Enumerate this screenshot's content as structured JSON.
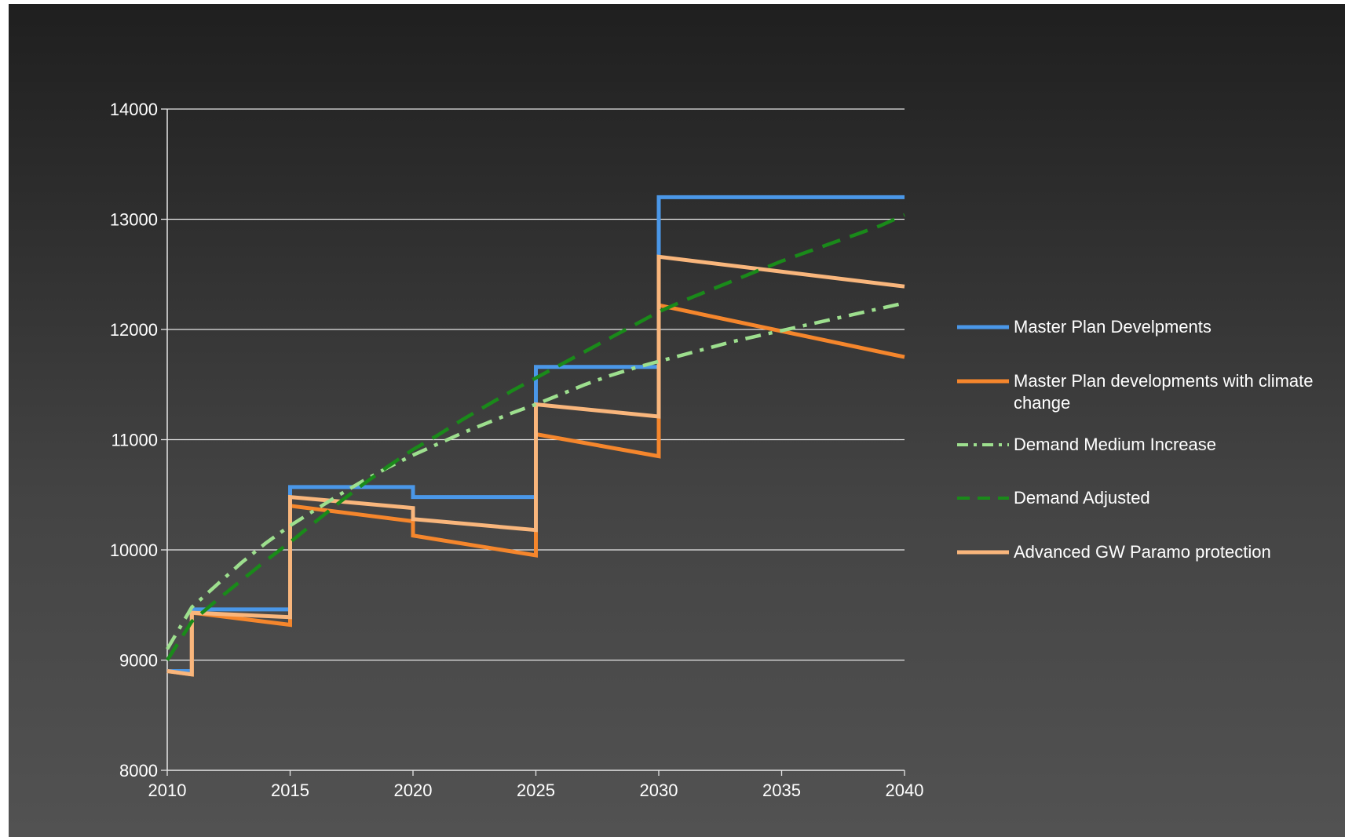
{
  "chart_data": {
    "type": "line",
    "title": "",
    "xlabel": "",
    "ylabel": "",
    "xlim": [
      2010,
      2040
    ],
    "ylim": [
      8000,
      14000
    ],
    "x_ticks": [
      "2010",
      "2015",
      "2020",
      "2025",
      "2030",
      "2035",
      "2040"
    ],
    "y_ticks": [
      "8000",
      "9000",
      "10000",
      "11000",
      "12000",
      "13000",
      "14000"
    ],
    "grid": true,
    "legend_position": "right",
    "series": [
      {
        "name": "Master Plan Develpments",
        "color": "#4a97e8",
        "style": "solid",
        "x": [
          2010,
          2011,
          2011,
          2015,
          2015,
          2020,
          2020,
          2025,
          2025,
          2030,
          2030,
          2040
        ],
        "y": [
          8900,
          8900,
          9460,
          9460,
          10570,
          10570,
          10480,
          10480,
          11660,
          11660,
          13200,
          13200
        ]
      },
      {
        "name": "Master Plan developments with climate change",
        "color": "#f5862c",
        "style": "solid",
        "x": [
          2010,
          2011,
          2011,
          2015,
          2015,
          2020,
          2020,
          2025,
          2025,
          2030,
          2030,
          2040
        ],
        "y": [
          8900,
          8870,
          9430,
          9320,
          10400,
          10260,
          10130,
          9950,
          11050,
          10850,
          12220,
          11750
        ]
      },
      {
        "name": "Demand  Medium Increase",
        "color": "#9ddf8e",
        "style": "dashdot",
        "x": [
          2010,
          2011,
          2012,
          2013,
          2014,
          2015,
          2016,
          2017,
          2018,
          2019,
          2020,
          2021,
          2022,
          2023,
          2024,
          2025,
          2026,
          2027,
          2028,
          2029,
          2030,
          2031,
          2032,
          2033,
          2034,
          2035,
          2036,
          2037,
          2038,
          2039,
          2040
        ],
        "y": [
          9100,
          9480,
          9680,
          9880,
          10060,
          10220,
          10360,
          10500,
          10630,
          10750,
          10860,
          10960,
          11060,
          11150,
          11240,
          11320,
          11410,
          11500,
          11580,
          11650,
          11710,
          11770,
          11830,
          11890,
          11940,
          11990,
          12040,
          12090,
          12140,
          12190,
          12240
        ]
      },
      {
        "name": "Demand Adjusted",
        "color": "#1a8a1a",
        "style": "dashed",
        "x": [
          2010,
          2011,
          2012,
          2013,
          2014,
          2015,
          2016,
          2017,
          2018,
          2019,
          2020,
          2021,
          2022,
          2023,
          2024,
          2025,
          2026,
          2027,
          2028,
          2029,
          2030,
          2031,
          2032,
          2033,
          2034,
          2035,
          2036,
          2037,
          2038,
          2039,
          2040
        ],
        "y": [
          9000,
          9350,
          9540,
          9720,
          9900,
          10070,
          10250,
          10430,
          10600,
          10760,
          10910,
          11040,
          11180,
          11310,
          11440,
          11560,
          11680,
          11800,
          11920,
          12040,
          12160,
          12260,
          12350,
          12440,
          12530,
          12620,
          12700,
          12780,
          12860,
          12940,
          13040
        ]
      },
      {
        "name": "Advanced GW Paramo protection",
        "color": "#f9b67c",
        "style": "solid",
        "x": [
          2010,
          2011,
          2011,
          2015,
          2015,
          2020,
          2020,
          2025,
          2025,
          2030,
          2030,
          2040
        ],
        "y": [
          8900,
          8870,
          9430,
          9390,
          10480,
          10380,
          10280,
          10180,
          11320,
          11210,
          12660,
          12390
        ]
      }
    ]
  },
  "legend": {
    "items": [
      {
        "label": "Master Plan Develpments",
        "color": "#4a97e8",
        "style": "solid"
      },
      {
        "label": "Master Plan developments with climate change",
        "color": "#f5862c",
        "style": "solid"
      },
      {
        "label": "Demand  Medium Increase",
        "color": "#9ddf8e",
        "style": "dashdot"
      },
      {
        "label": "Demand Adjusted",
        "color": "#1a8a1a",
        "style": "dashed"
      },
      {
        "label": "Advanced GW Paramo protection",
        "color": "#f9b67c",
        "style": "solid"
      }
    ]
  }
}
